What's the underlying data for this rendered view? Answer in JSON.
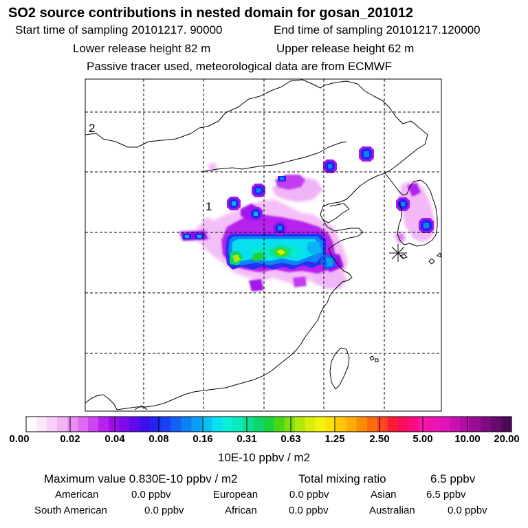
{
  "header": {
    "title": "SO2 source contributions in nested domain for gosan_201012",
    "start_label": "Start time of sampling 20101217. 90000",
    "end_label": "End time of sampling 20101217.120000",
    "lower_label": "Lower release height   82 m",
    "upper_label": "Upper release height   62 m",
    "note": "Passive tracer used, meteorological data are from ECMWF"
  },
  "map": {
    "labels": {
      "region_1": "1",
      "region_2": "2"
    },
    "receptor_symbol": "asterisk",
    "background": "#ffffff",
    "coast_color": "#000000",
    "grid_style": "dashed"
  },
  "colorbar": {
    "ticks": [
      "0.00",
      "0.02",
      "0.04",
      "0.08",
      "0.16",
      "0.31",
      "0.63",
      "1.25",
      "2.50",
      "5.00",
      "10.00",
      "20.00"
    ],
    "colors": [
      "#ffffff",
      "#fde7fd",
      "#fad0fb",
      "#f2b4f7",
      "#e88ef4",
      "#dd6cf2",
      "#cd45f0",
      "#b821ee",
      "#9f0cec",
      "#7f0bec",
      "#5e0cec",
      "#3c10ef",
      "#2424f3",
      "#1a40f5",
      "#1260f6",
      "#0c80f6",
      "#08a0f6",
      "#08c2f4",
      "#08e0f0",
      "#08f0d8",
      "#08eab8",
      "#08e295",
      "#08d86e",
      "#1ad33c",
      "#48d716",
      "#7ee00a",
      "#b0e80a",
      "#d8ef0a",
      "#f5f30a",
      "#ffe000",
      "#ffc800",
      "#ffac00",
      "#ff8c00",
      "#ff6a0e",
      "#ff4420",
      "#ff1c34",
      "#ff0c5c",
      "#ff0c84",
      "#fc14a4",
      "#f014b4",
      "#e014b8",
      "#cc10b0",
      "#b40ea4",
      "#9a0c94",
      "#800a80",
      "#680a6c",
      "#50085a"
    ],
    "unit": "10E-10 ppbv / m2"
  },
  "summary": {
    "max_label": "Maximum value  0.830E-10 ppbv / m2",
    "total_label": "Total mixing ratio",
    "total_value": "6.5 ppbv",
    "regions_row1": [
      {
        "name": "American",
        "value": "0.0 ppbv"
      },
      {
        "name": "European",
        "value": "0.0 ppbv"
      },
      {
        "name": "Asian",
        "value": "6.5 ppbv"
      }
    ],
    "regions_row2": [
      {
        "name": "South American",
        "value": "0.0 ppbv"
      },
      {
        "name": "African",
        "value": "0.0 ppbv"
      },
      {
        "name": "Australian",
        "value": "0.0 ppbv"
      }
    ]
  }
}
